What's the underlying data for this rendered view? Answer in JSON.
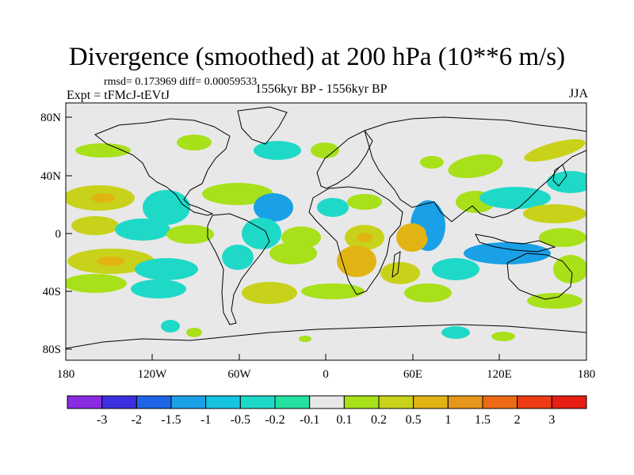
{
  "title": "Divergence (smoothed) at 200 hPa (10**6 m/s)",
  "stats": "rmsd= 0.173969 diff= 0.00059533",
  "experiment": "Expt = tFMcJ-tEVtJ",
  "period": "1556kyr BP - 1556kyr BP",
  "season": "JJA",
  "lat_ticks": [
    "80N",
    "40N",
    "0",
    "40S",
    "80S"
  ],
  "lon_ticks": [
    "180",
    "120W",
    "60W",
    "0",
    "60E",
    "120E",
    "180"
  ],
  "colorbar": {
    "labels": [
      "-3",
      "-2",
      "-1.5",
      "-1",
      "-0.5",
      "-0.2",
      "-0.1",
      "0.1",
      "0.2",
      "0.5",
      "1",
      "1.5",
      "2",
      "3"
    ],
    "colors": [
      "#8a2be2",
      "#3b2fe0",
      "#1e64e6",
      "#1aa0e6",
      "#16c3e0",
      "#1fd9c8",
      "#23e0a0",
      "#e8e8e8",
      "#a8e01a",
      "#c8d21a",
      "#e1b414",
      "#e6961a",
      "#ee6a14",
      "#ee3c14",
      "#e61e14"
    ]
  },
  "palette": {
    "background": "#e8e8e8",
    "neg_weak": "#23e0a0",
    "neg_mid": "#1fd9c8",
    "neg_strong": "#1aa0e6",
    "pos_weak": "#a8e01a",
    "pos_mid": "#c8d21a",
    "pos_strong": "#e1b414"
  }
}
